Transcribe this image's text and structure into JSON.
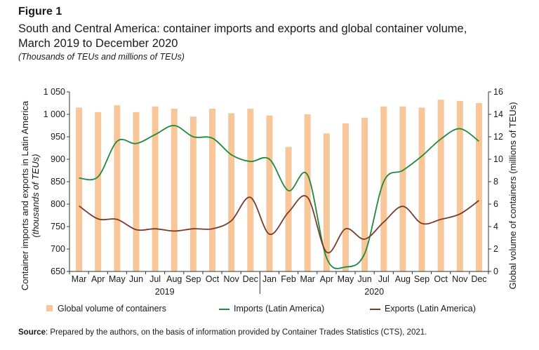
{
  "figure_label": "Figure 1",
  "title_line1": "South and Central America: container imports and exports and global container volume,",
  "title_line2": "March 2019 to December 2020",
  "units": "(Thousands of TEUs and millions of TEUs)",
  "source_label": "Source",
  "source_text": ":  Prepared by the authors, on the basis of information provided by Container Trades Statistics (CTS), 2021.",
  "chart_data": {
    "type": "bar",
    "categories": [
      "Mar",
      "Apr",
      "May",
      "Jun",
      "Jul",
      "Aug",
      "Sep",
      "Oct",
      "Nov",
      "Dec",
      "Jan",
      "Feb",
      "Mar",
      "Apr",
      "May",
      "Jun",
      "Jul",
      "Aug",
      "Sep",
      "Oct",
      "Nov",
      "Dec"
    ],
    "year_groups": [
      {
        "label": "2019",
        "start": 0,
        "end": 9
      },
      {
        "label": "2020",
        "start": 10,
        "end": 21
      }
    ],
    "series": [
      {
        "name": "Global volume of containers",
        "type": "bar",
        "axis": "right",
        "color": "#f7c79a",
        "values": [
          14.6,
          14.2,
          14.8,
          14.2,
          14.7,
          14.5,
          13.8,
          14.5,
          14.1,
          14.5,
          13.9,
          11.1,
          14.0,
          12.3,
          13.2,
          13.7,
          14.7,
          14.7,
          14.6,
          15.3,
          15.2,
          15.0
        ]
      },
      {
        "name": "Imports (Latin America)",
        "type": "line",
        "axis": "left",
        "color": "#1e8a3c",
        "values": [
          858,
          861,
          940,
          935,
          955,
          975,
          950,
          947,
          910,
          895,
          900,
          830,
          865,
          680,
          660,
          690,
          850,
          875,
          907,
          945,
          968,
          940
        ]
      },
      {
        "name": "Exports (Latin America)",
        "type": "line",
        "axis": "left",
        "color": "#7a3b2a",
        "values": [
          796,
          767,
          766,
          743,
          745,
          740,
          745,
          745,
          763,
          815,
          733,
          782,
          815,
          693,
          745,
          722,
          760,
          795,
          757,
          766,
          778,
          808
        ]
      }
    ],
    "ylabel_left_line1": "Container imports and exports in Latin America",
    "ylabel_left_line2": "(thousands of TEUs)",
    "ylabel_right": "Global volume of containers (millions of TEUs)",
    "ylim_left": [
      650,
      1050
    ],
    "yticks_left": [
      "650",
      "700",
      "750",
      "800",
      "850",
      "900",
      "950",
      "1 000",
      "1 050"
    ],
    "ylim_right": [
      0,
      16
    ],
    "yticks_right": [
      "0",
      "2",
      "4",
      "6",
      "8",
      "10",
      "12",
      "14",
      "16"
    ],
    "grid": false,
    "legend_position": "bottom"
  }
}
